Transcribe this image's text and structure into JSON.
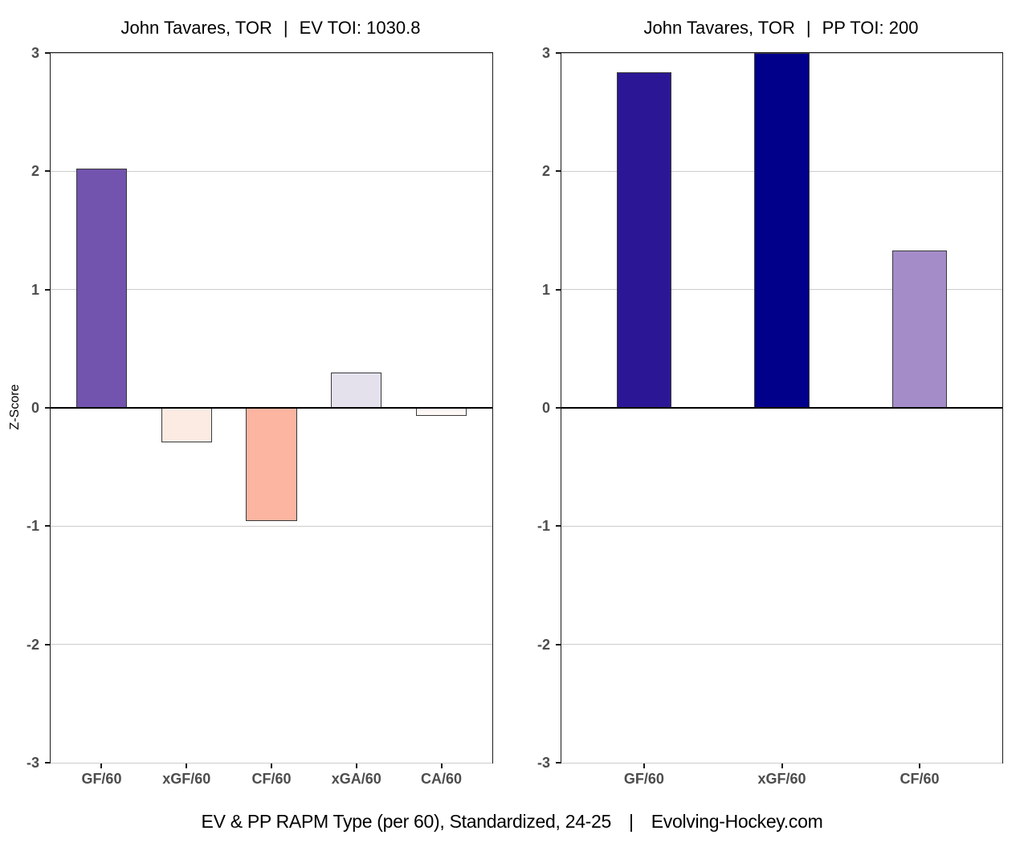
{
  "figure": {
    "background": "#ffffff"
  },
  "axis": {
    "ylabel": "Z-Score",
    "yticks": [
      3,
      2,
      1,
      0,
      -1,
      -2,
      -3
    ],
    "tick_label_color": "#4d4d4d",
    "gridline_color": "#cccccc",
    "zeroline_color": "#000000",
    "bar_border_color": "#3a3a3a"
  },
  "caption": {
    "left": "EV & PP RAPM Type (per 60), Standardized, 24-25",
    "separator": "|",
    "right": "Evolving-Hockey.com"
  },
  "chart_data": [
    {
      "type": "bar",
      "title": "John Tavares, TOR | EV TOI: 1030.8",
      "title_parts": [
        "John Tavares, TOR",
        "|",
        "EV TOI: 1030.8"
      ],
      "categories": [
        "GF/60",
        "xGF/60",
        "CF/60",
        "xGA/60",
        "CA/60"
      ],
      "values": [
        2.02,
        -0.29,
        -0.96,
        0.3,
        -0.07
      ],
      "colors": [
        "#7253ae",
        "#fcebe3",
        "#fbb5a1",
        "#e4e1ed",
        "#fdf8f6"
      ],
      "ylabel": "Z-Score",
      "ylim": [
        -3,
        3
      ],
      "grid": true,
      "legend": false,
      "bar_rel_width": 0.6
    },
    {
      "type": "bar",
      "title": "John Tavares, TOR | PP TOI: 200",
      "title_parts": [
        "John Tavares, TOR",
        "|",
        "PP TOI: 200"
      ],
      "categories": [
        "GF/60",
        "xGF/60",
        "CF/60"
      ],
      "values": [
        2.84,
        3.0,
        1.33
      ],
      "colors": [
        "#2b1795",
        "#00008b",
        "#a38cc8"
      ],
      "ylabel": "",
      "ylim": [
        -3,
        3
      ],
      "grid": true,
      "legend": false,
      "bar_rel_width": 0.4
    }
  ]
}
